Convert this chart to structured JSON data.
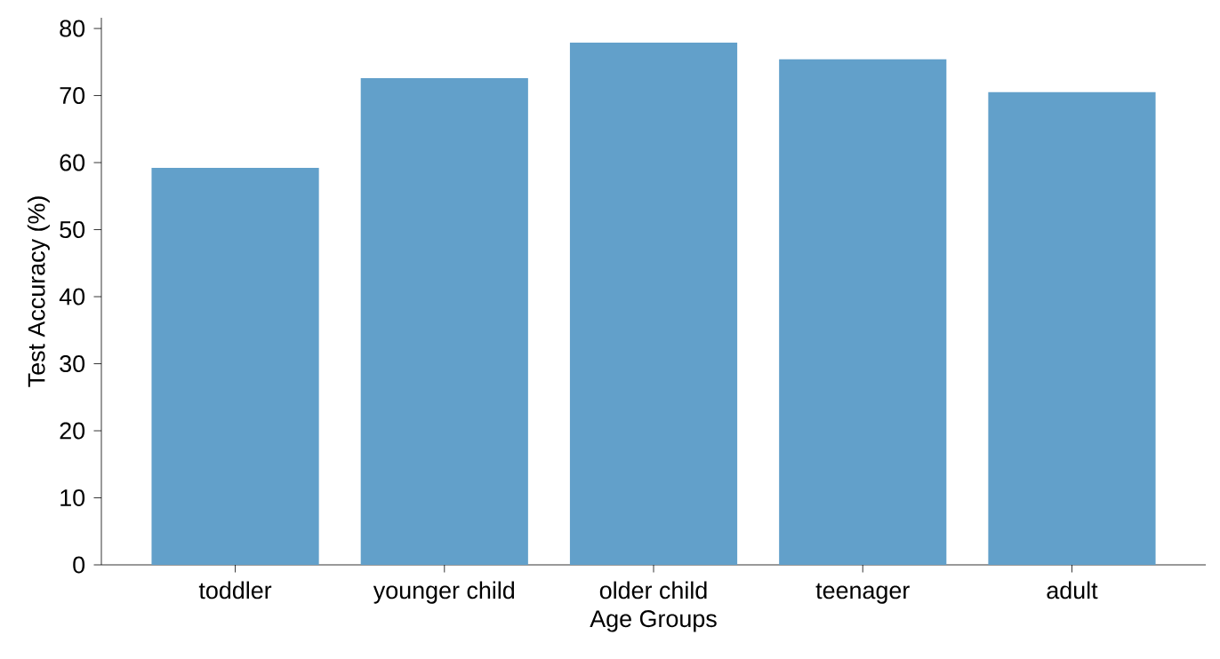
{
  "chart_data": {
    "type": "bar",
    "xlabel": "Age Groups",
    "ylabel": "Test Accuracy (%)",
    "categories": [
      "toddler",
      "younger child",
      "older child",
      "teenager",
      "adult"
    ],
    "values": [
      59.2,
      72.6,
      77.9,
      75.4,
      70.5
    ],
    "color": "#62a0ca",
    "ylim": [
      0,
      81.6
    ],
    "yticks": [
      0,
      10,
      20,
      30,
      40,
      50,
      60,
      70,
      80
    ],
    "grid": false
  }
}
